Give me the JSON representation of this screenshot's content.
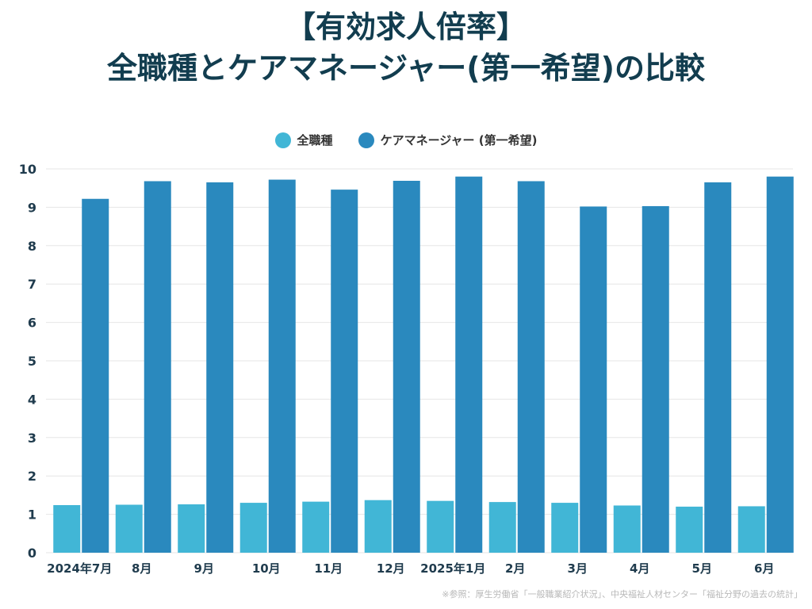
{
  "title_line1": "【有効求人倍率】",
  "title_line2": "全職種とケアマネージャー(第一希望)の比較",
  "source": "※参照：厚生労働省「一般職業紹介状況」、中央福祉人材センター「福祉分野の過去の統計」",
  "colors": {
    "series1": "#41b6d6",
    "series2": "#2a89be",
    "grid": "#e6e6e6",
    "axis_text": "#1f3b4d"
  },
  "chart_data": {
    "type": "bar",
    "categories": [
      "2024年7月",
      "8月",
      "9月",
      "10月",
      "11月",
      "12月",
      "2025年1月",
      "2月",
      "3月",
      "4月",
      "5月",
      "6月"
    ],
    "series": [
      {
        "name": "全職種",
        "values": [
          1.24,
          1.25,
          1.26,
          1.3,
          1.33,
          1.37,
          1.35,
          1.32,
          1.3,
          1.23,
          1.2,
          1.21
        ]
      },
      {
        "name": "ケアマネージャー (第一希望)",
        "values": [
          9.22,
          9.68,
          9.65,
          9.72,
          9.46,
          9.69,
          9.8,
          9.68,
          9.02,
          9.03,
          9.65,
          9.8
        ]
      }
    ],
    "yticks": [
      0,
      1,
      2,
      3,
      4,
      5,
      6,
      7,
      8,
      9,
      10
    ],
    "ylim": [
      0,
      10
    ],
    "grid": true,
    "legend": "top-center"
  }
}
